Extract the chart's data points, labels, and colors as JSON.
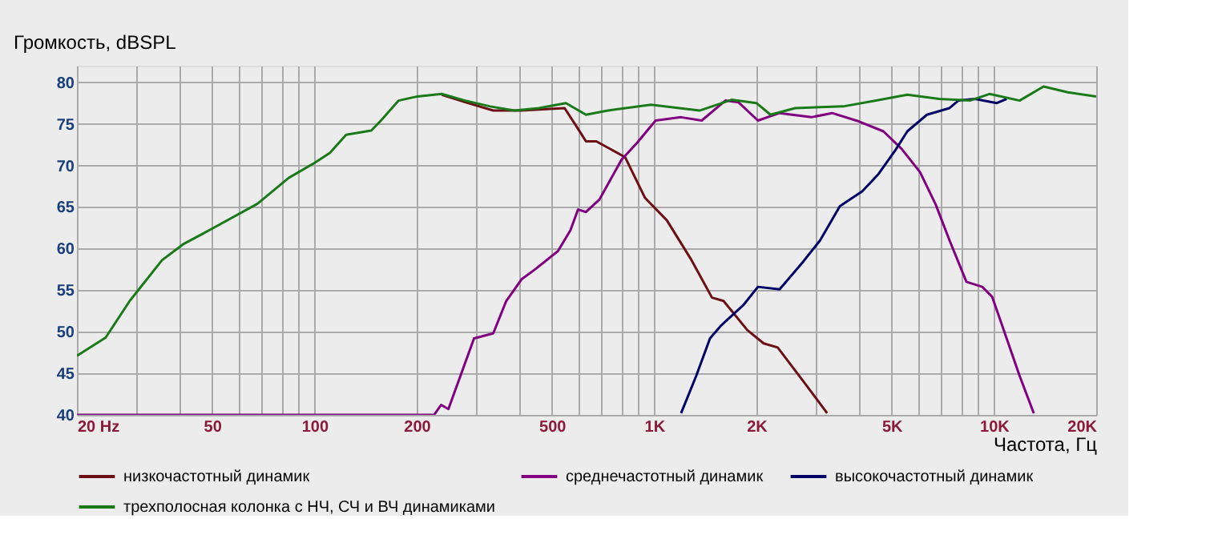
{
  "chart_data": {
    "type": "line",
    "ylabel": "Громкость, dBSPL",
    "xlabel": "Частота, Гц",
    "log": "x",
    "xlim": [
      20,
      20000
    ],
    "ylim": [
      40,
      82
    ],
    "xticks": [
      {
        "value": 20,
        "label": "20  Hz"
      },
      {
        "value": 30,
        "label": null
      },
      {
        "value": 40,
        "label": null
      },
      50,
      {
        "value": 60,
        "label": null
      },
      {
        "value": 70,
        "label": null
      },
      {
        "value": 80,
        "label": null
      },
      {
        "value": 90,
        "label": null
      },
      100,
      200,
      {
        "value": 300,
        "label": null
      },
      {
        "value": 400,
        "label": null
      },
      500,
      {
        "value": 600,
        "label": null
      },
      {
        "value": 700,
        "label": null
      },
      {
        "value": 800,
        "label": null
      },
      {
        "value": 900,
        "label": null
      },
      {
        "value": 1000,
        "label": "1K"
      },
      {
        "value": 2000,
        "label": "2K"
      },
      {
        "value": 3000,
        "label": null
      },
      {
        "value": 4000,
        "label": null
      },
      {
        "value": 5000,
        "label": "5K"
      },
      {
        "value": 6000,
        "label": null
      },
      {
        "value": 7000,
        "label": null
      },
      {
        "value": 8000,
        "label": null
      },
      {
        "value": 9000,
        "label": null
      },
      {
        "value": 10000,
        "label": "10K"
      },
      {
        "value": 20000,
        "label": "20K"
      }
    ],
    "yticks": [
      40,
      45,
      50,
      55,
      60,
      65,
      70,
      75,
      80
    ],
    "grid": true,
    "legend": "bottom",
    "line_style": "solid",
    "marker": "none",
    "series": [
      {
        "name": "низкочастотный динамик",
        "color": "#6b0f14",
        "x": [
          237,
          278,
          336,
          407,
          545,
          597,
          630,
          676,
          821,
          940,
          1090,
          1280,
          1480,
          1600,
          1880,
          2100,
          2310,
          2800,
          3230
        ],
        "values": [
          78.5,
          77.6,
          76.6,
          76.6,
          76.9,
          74.4,
          72.9,
          72.9,
          71,
          66.1,
          63.4,
          58.8,
          54.1,
          53.7,
          50.2,
          48.6,
          48.1,
          43.6,
          40.2
        ]
      },
      {
        "name": "среднечастотный динамик",
        "color": "#800080",
        "x": [
          20,
          225,
          236,
          248,
          295,
          336,
          367,
          407,
          446,
          521,
          567,
          597,
          630,
          690,
          802,
          890,
          1010,
          1200,
          1380,
          1620,
          1770,
          2020,
          2340,
          2900,
          3340,
          4000,
          4730,
          5350,
          6060,
          6740,
          7400,
          8300,
          9240,
          9880,
          10900,
          11900,
          13100
        ],
        "values": [
          40,
          40,
          41.2,
          40.7,
          49.2,
          49.8,
          53.7,
          56.3,
          57.5,
          59.7,
          62.2,
          64.7,
          64.4,
          65.9,
          70.7,
          72.7,
          75.4,
          75.8,
          75.4,
          77.8,
          77.6,
          75.4,
          76.3,
          75.8,
          76.3,
          75.3,
          74.1,
          72,
          69.2,
          65.3,
          61,
          56,
          55.4,
          54.2,
          49.2,
          44.7,
          40.2
        ]
      },
      {
        "name": "высокочастотный динамик",
        "color": "#000066",
        "x": [
          1200,
          1330,
          1460,
          1570,
          1830,
          2020,
          2340,
          2730,
          3080,
          3520,
          4100,
          4580,
          5140,
          5560,
          6350,
          7400,
          7860,
          8790,
          10200,
          10900
        ],
        "values": [
          40.2,
          44.7,
          49.2,
          50.7,
          53.2,
          55.4,
          55.1,
          58.3,
          61,
          65.1,
          66.9,
          69,
          71.9,
          74.1,
          76.1,
          76.9,
          77.8,
          78,
          77.5,
          78
        ]
      },
      {
        "name": "трехполосная колонка с НЧ, СЧ и ВЧ динамиками",
        "color": "#1a7a1a",
        "x": [
          20,
          24.3,
          28.6,
          35.6,
          41,
          49,
          68,
          84,
          100,
          111,
          124,
          147,
          157,
          177,
          201,
          237,
          278,
          329,
          388,
          458,
          550,
          630,
          731,
          978,
          1360,
          1690,
          2000,
          2200,
          2600,
          3600,
          4500,
          5560,
          6900,
          8500,
          9700,
          11900,
          14000,
          16500,
          20000
        ],
        "values": [
          47.1,
          49.3,
          53.7,
          58.6,
          60.5,
          62.2,
          65.4,
          68.5,
          70.3,
          71.5,
          73.7,
          74.2,
          75.4,
          77.8,
          78.3,
          78.6,
          77.8,
          77.1,
          76.6,
          76.9,
          77.5,
          76.1,
          76.6,
          77.3,
          76.6,
          77.9,
          77.5,
          76.1,
          76.9,
          77.1,
          77.8,
          78.5,
          78,
          77.8,
          78.6,
          77.8,
          79.5,
          78.8,
          78.3
        ]
      }
    ]
  }
}
